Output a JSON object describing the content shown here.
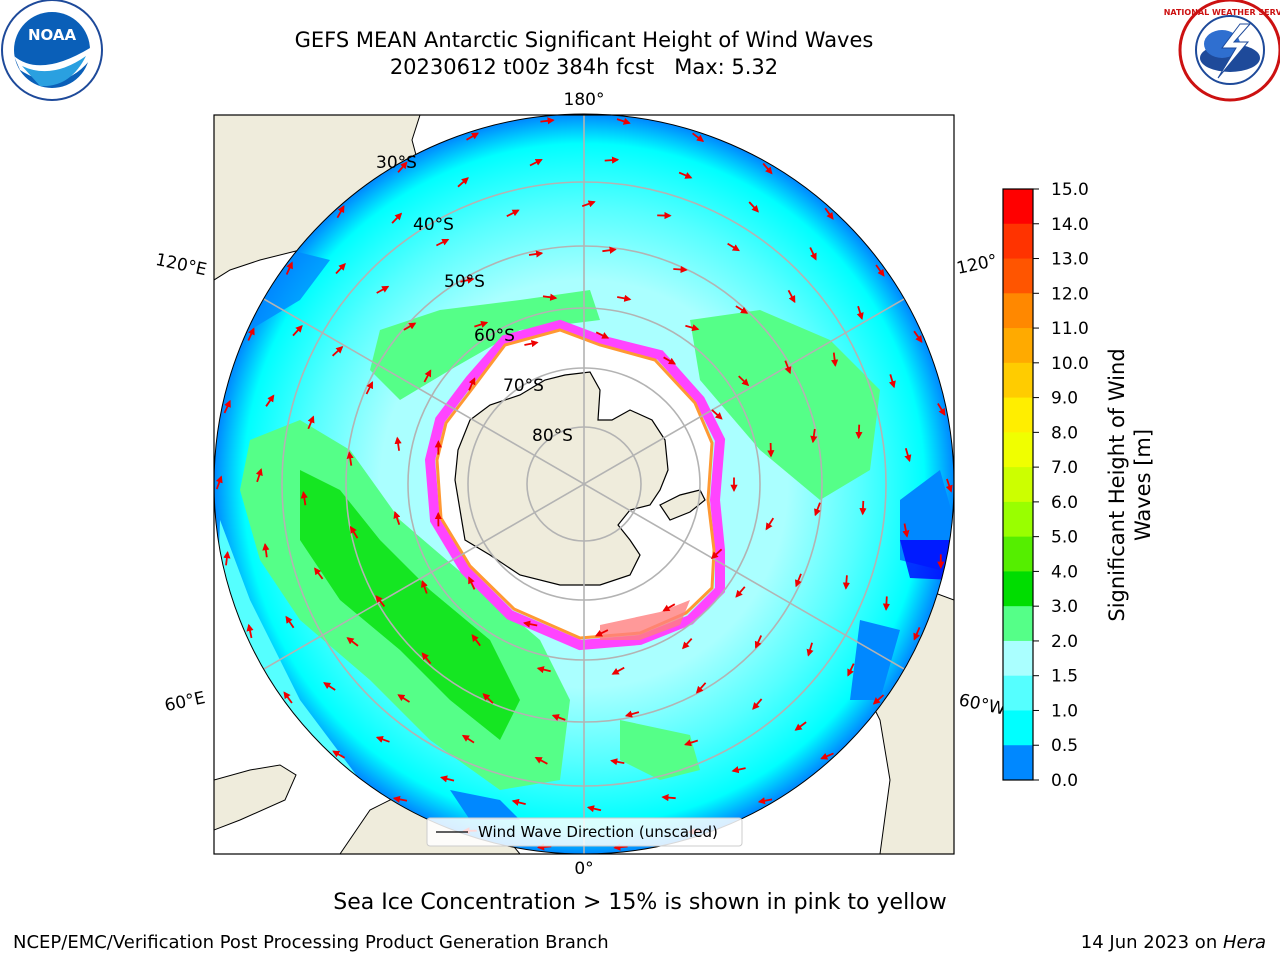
{
  "title": {
    "line1": "GEFS MEAN Antarctic Significant Height of Wind Waves",
    "line2": "20230612 t00z 384h fcst   Max: 5.32"
  },
  "map": {
    "projection": "south-polar-stereographic",
    "lat_labels": [
      "30°S",
      "40°S",
      "50°S",
      "60°S",
      "70°S",
      "80°S"
    ],
    "lon_labels": {
      "top": "180°",
      "bottom": "0°",
      "upper_left": "120°E",
      "upper_right": "120°",
      "lower_left": "60°E",
      "lower_right": "60°W"
    },
    "colors": {
      "land": "#efecdc",
      "ice": "#ffffff",
      "ice_edge": [
        "#ff44ff",
        "#ff9933",
        "#ffe033"
      ],
      "arrow": "#ee0000",
      "grid": "#b3b3b3"
    },
    "legend": {
      "label": "Wind Wave Direction (unscaled)"
    }
  },
  "colorbar": {
    "label": "Significant Height of Wind Waves [m]",
    "label_line1": "Significant Height of Wind",
    "label_line2": "Waves [m]",
    "ticks": [
      "15.0",
      "14.0",
      "13.0",
      "12.0",
      "11.0",
      "10.0",
      "9.0",
      "8.0",
      "7.0",
      "6.0",
      "5.0",
      "4.0",
      "3.0",
      "2.0",
      "1.5",
      "1.0",
      "0.5",
      "0.0"
    ],
    "colors": [
      "#ff0000",
      "#ff3300",
      "#ff5500",
      "#ff8800",
      "#ffaa00",
      "#ffcc00",
      "#ffee00",
      "#f0ff00",
      "#ccff00",
      "#99ff00",
      "#55ee00",
      "#00dd00",
      "#55ff88",
      "#aaffff",
      "#55ffff",
      "#00ffff",
      "#0088ff",
      "#0000ff"
    ]
  },
  "logos": {
    "left": "NOAA",
    "right": "NATIONAL WEATHER SERVICE"
  },
  "note": "Sea Ice Concentration > 15% is shown in pink to yellow",
  "footer": {
    "left": "NCEP/EMC/Verification Post Processing Product Generation Branch",
    "right_prefix": "14 Jun 2023 on ",
    "right_host": "Hera"
  }
}
